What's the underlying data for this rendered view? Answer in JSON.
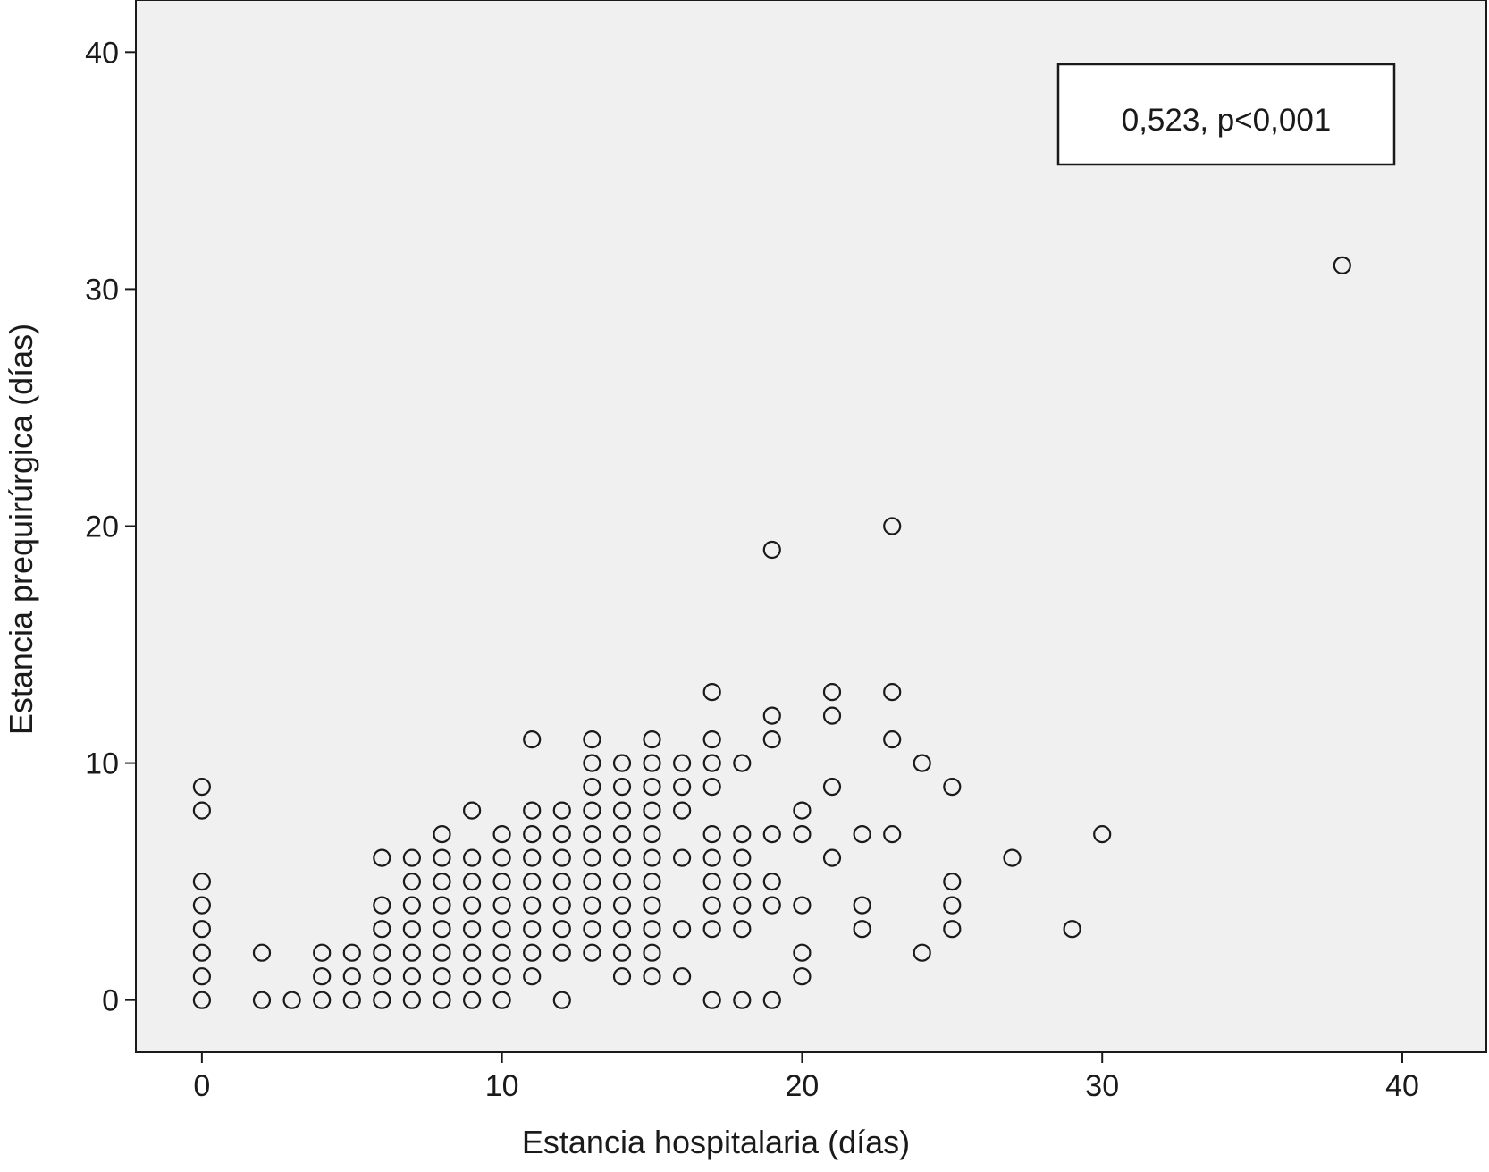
{
  "chart_data": {
    "type": "scatter",
    "title": "",
    "xlabel": "Estancia hospitalaria (días)",
    "ylabel": "Estancia prequirúrgica (días)",
    "xlim": [
      -2.2,
      42.8
    ],
    "ylim": [
      -2.2,
      42.2
    ],
    "xticks": [
      0,
      10,
      20,
      30,
      40
    ],
    "yticks": [
      0,
      10,
      20,
      30,
      40
    ],
    "annotation": "0,523, p<0,001",
    "grid": false,
    "background_color": "#f0f0f0",
    "marker": "open-circle",
    "points": [
      [
        0,
        0
      ],
      [
        0,
        1
      ],
      [
        0,
        2
      ],
      [
        0,
        3
      ],
      [
        0,
        4
      ],
      [
        0,
        5
      ],
      [
        0,
        8
      ],
      [
        0,
        9
      ],
      [
        2,
        0
      ],
      [
        2,
        2
      ],
      [
        3,
        0
      ],
      [
        4,
        0
      ],
      [
        4,
        1
      ],
      [
        4,
        2
      ],
      [
        5,
        0
      ],
      [
        5,
        1
      ],
      [
        5,
        2
      ],
      [
        6,
        0
      ],
      [
        6,
        1
      ],
      [
        6,
        2
      ],
      [
        6,
        3
      ],
      [
        6,
        4
      ],
      [
        6,
        6
      ],
      [
        7,
        0
      ],
      [
        7,
        1
      ],
      [
        7,
        2
      ],
      [
        7,
        3
      ],
      [
        7,
        4
      ],
      [
        7,
        5
      ],
      [
        7,
        6
      ],
      [
        8,
        0
      ],
      [
        8,
        1
      ],
      [
        8,
        2
      ],
      [
        8,
        3
      ],
      [
        8,
        4
      ],
      [
        8,
        5
      ],
      [
        8,
        6
      ],
      [
        8,
        7
      ],
      [
        9,
        0
      ],
      [
        9,
        1
      ],
      [
        9,
        2
      ],
      [
        9,
        3
      ],
      [
        9,
        4
      ],
      [
        9,
        5
      ],
      [
        9,
        6
      ],
      [
        9,
        8
      ],
      [
        10,
        0
      ],
      [
        10,
        1
      ],
      [
        10,
        2
      ],
      [
        10,
        3
      ],
      [
        10,
        4
      ],
      [
        10,
        5
      ],
      [
        10,
        6
      ],
      [
        10,
        7
      ],
      [
        11,
        1
      ],
      [
        11,
        2
      ],
      [
        11,
        3
      ],
      [
        11,
        4
      ],
      [
        11,
        5
      ],
      [
        11,
        6
      ],
      [
        11,
        7
      ],
      [
        11,
        8
      ],
      [
        11,
        11
      ],
      [
        12,
        0
      ],
      [
        12,
        2
      ],
      [
        12,
        3
      ],
      [
        12,
        4
      ],
      [
        12,
        5
      ],
      [
        12,
        6
      ],
      [
        12,
        7
      ],
      [
        12,
        8
      ],
      [
        13,
        2
      ],
      [
        13,
        3
      ],
      [
        13,
        4
      ],
      [
        13,
        5
      ],
      [
        13,
        6
      ],
      [
        13,
        7
      ],
      [
        13,
        8
      ],
      [
        13,
        9
      ],
      [
        13,
        10
      ],
      [
        13,
        11
      ],
      [
        14,
        1
      ],
      [
        14,
        2
      ],
      [
        14,
        3
      ],
      [
        14,
        4
      ],
      [
        14,
        5
      ],
      [
        14,
        6
      ],
      [
        14,
        7
      ],
      [
        14,
        8
      ],
      [
        14,
        9
      ],
      [
        14,
        10
      ],
      [
        15,
        1
      ],
      [
        15,
        2
      ],
      [
        15,
        3
      ],
      [
        15,
        4
      ],
      [
        15,
        5
      ],
      [
        15,
        6
      ],
      [
        15,
        7
      ],
      [
        15,
        8
      ],
      [
        15,
        9
      ],
      [
        15,
        10
      ],
      [
        15,
        11
      ],
      [
        16,
        1
      ],
      [
        16,
        3
      ],
      [
        16,
        6
      ],
      [
        16,
        8
      ],
      [
        16,
        9
      ],
      [
        16,
        10
      ],
      [
        17,
        0
      ],
      [
        17,
        3
      ],
      [
        17,
        4
      ],
      [
        17,
        5
      ],
      [
        17,
        6
      ],
      [
        17,
        7
      ],
      [
        17,
        9
      ],
      [
        17,
        10
      ],
      [
        17,
        11
      ],
      [
        17,
        13
      ],
      [
        18,
        0
      ],
      [
        18,
        3
      ],
      [
        18,
        4
      ],
      [
        18,
        5
      ],
      [
        18,
        6
      ],
      [
        18,
        7
      ],
      [
        18,
        10
      ],
      [
        19,
        0
      ],
      [
        19,
        4
      ],
      [
        19,
        5
      ],
      [
        19,
        7
      ],
      [
        19,
        11
      ],
      [
        19,
        12
      ],
      [
        19,
        19
      ],
      [
        20,
        1
      ],
      [
        20,
        2
      ],
      [
        20,
        4
      ],
      [
        20,
        7
      ],
      [
        20,
        8
      ],
      [
        21,
        6
      ],
      [
        21,
        9
      ],
      [
        21,
        12
      ],
      [
        21,
        13
      ],
      [
        22,
        3
      ],
      [
        22,
        4
      ],
      [
        22,
        7
      ],
      [
        23,
        7
      ],
      [
        23,
        11
      ],
      [
        23,
        13
      ],
      [
        23,
        20
      ],
      [
        24,
        2
      ],
      [
        24,
        10
      ],
      [
        25,
        3
      ],
      [
        25,
        4
      ],
      [
        25,
        5
      ],
      [
        25,
        9
      ],
      [
        27,
        6
      ],
      [
        29,
        3
      ],
      [
        30,
        7
      ],
      [
        38,
        31
      ]
    ]
  }
}
